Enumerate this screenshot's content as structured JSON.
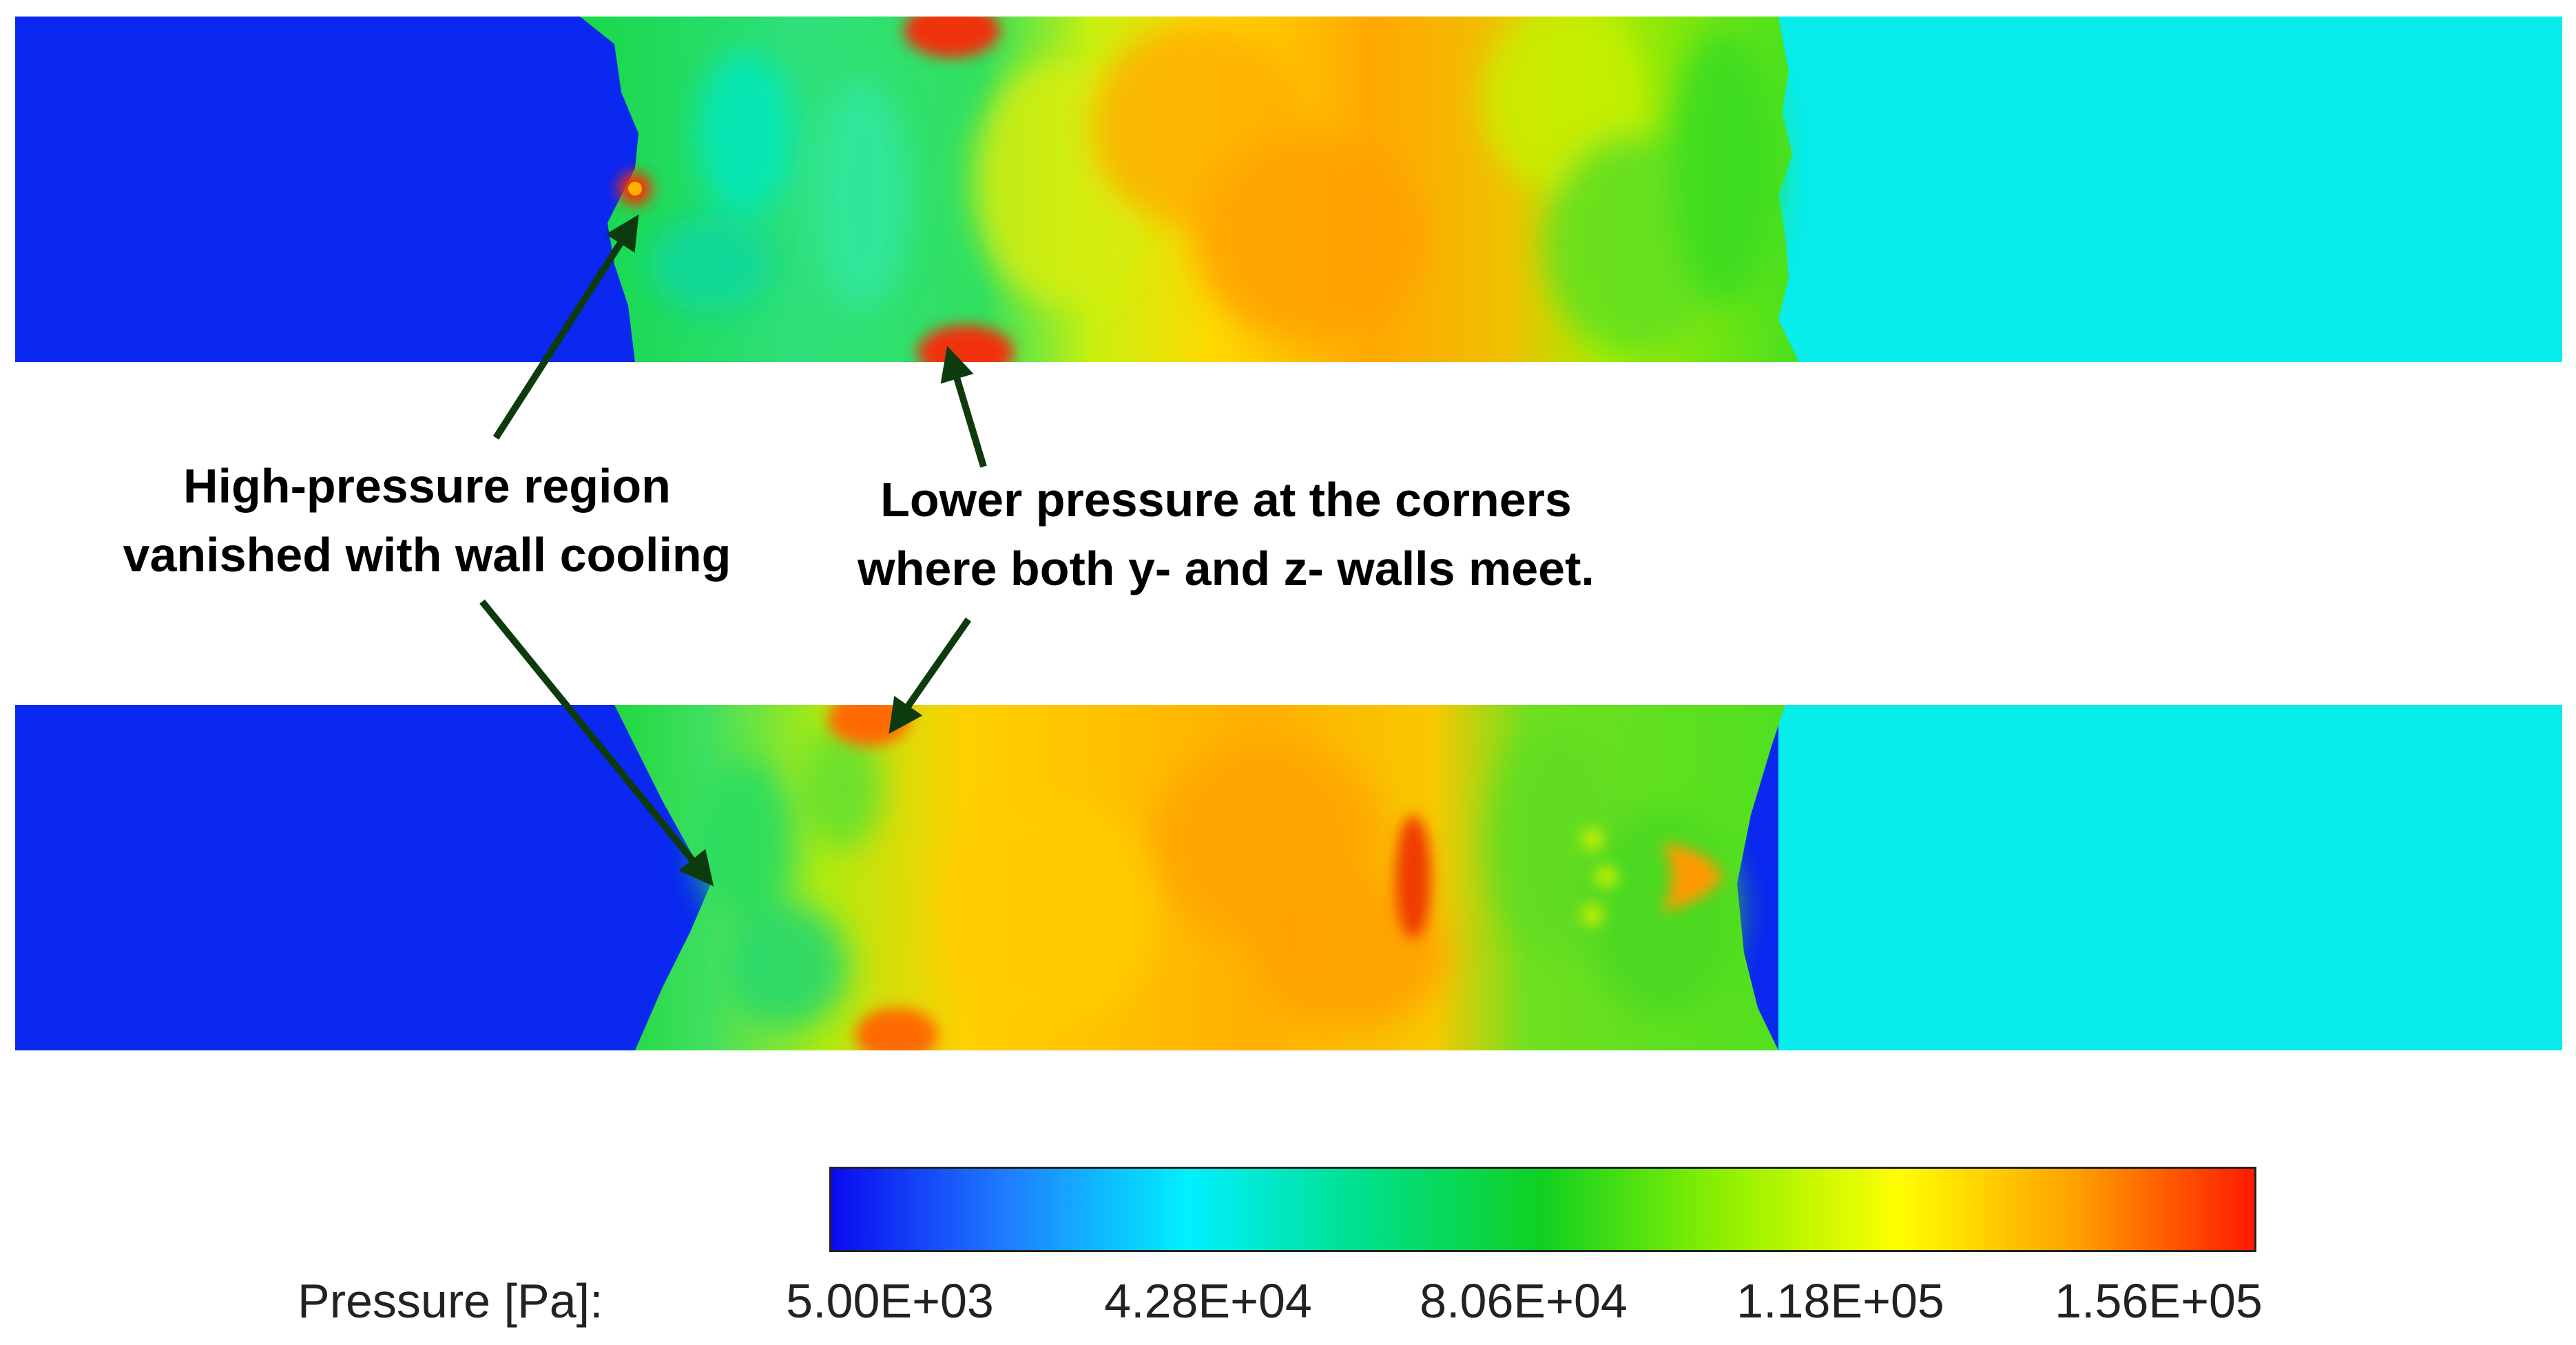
{
  "annotations": {
    "left_line1": "High-pressure region",
    "left_line2": "vanished with wall cooling",
    "right_line1": "Lower pressure at the corners",
    "right_line2": "where both y- and z- walls meet."
  },
  "colorbar": {
    "label": "Pressure [Pa]:",
    "ticks": [
      "5.00E+03",
      "4.28E+04",
      "8.06E+04",
      "1.18E+05",
      "1.56E+05"
    ],
    "colormap": [
      "#0a0af0",
      "#1f7fff",
      "#00f0ff",
      "#00e08a",
      "#10d020",
      "#8cf000",
      "#ffff00",
      "#ffa000",
      "#ff1a00"
    ]
  },
  "colors": {
    "arrow": "#0e3b0e",
    "low_region": "#0a28f0",
    "ambient_region": "#08ecec"
  }
}
